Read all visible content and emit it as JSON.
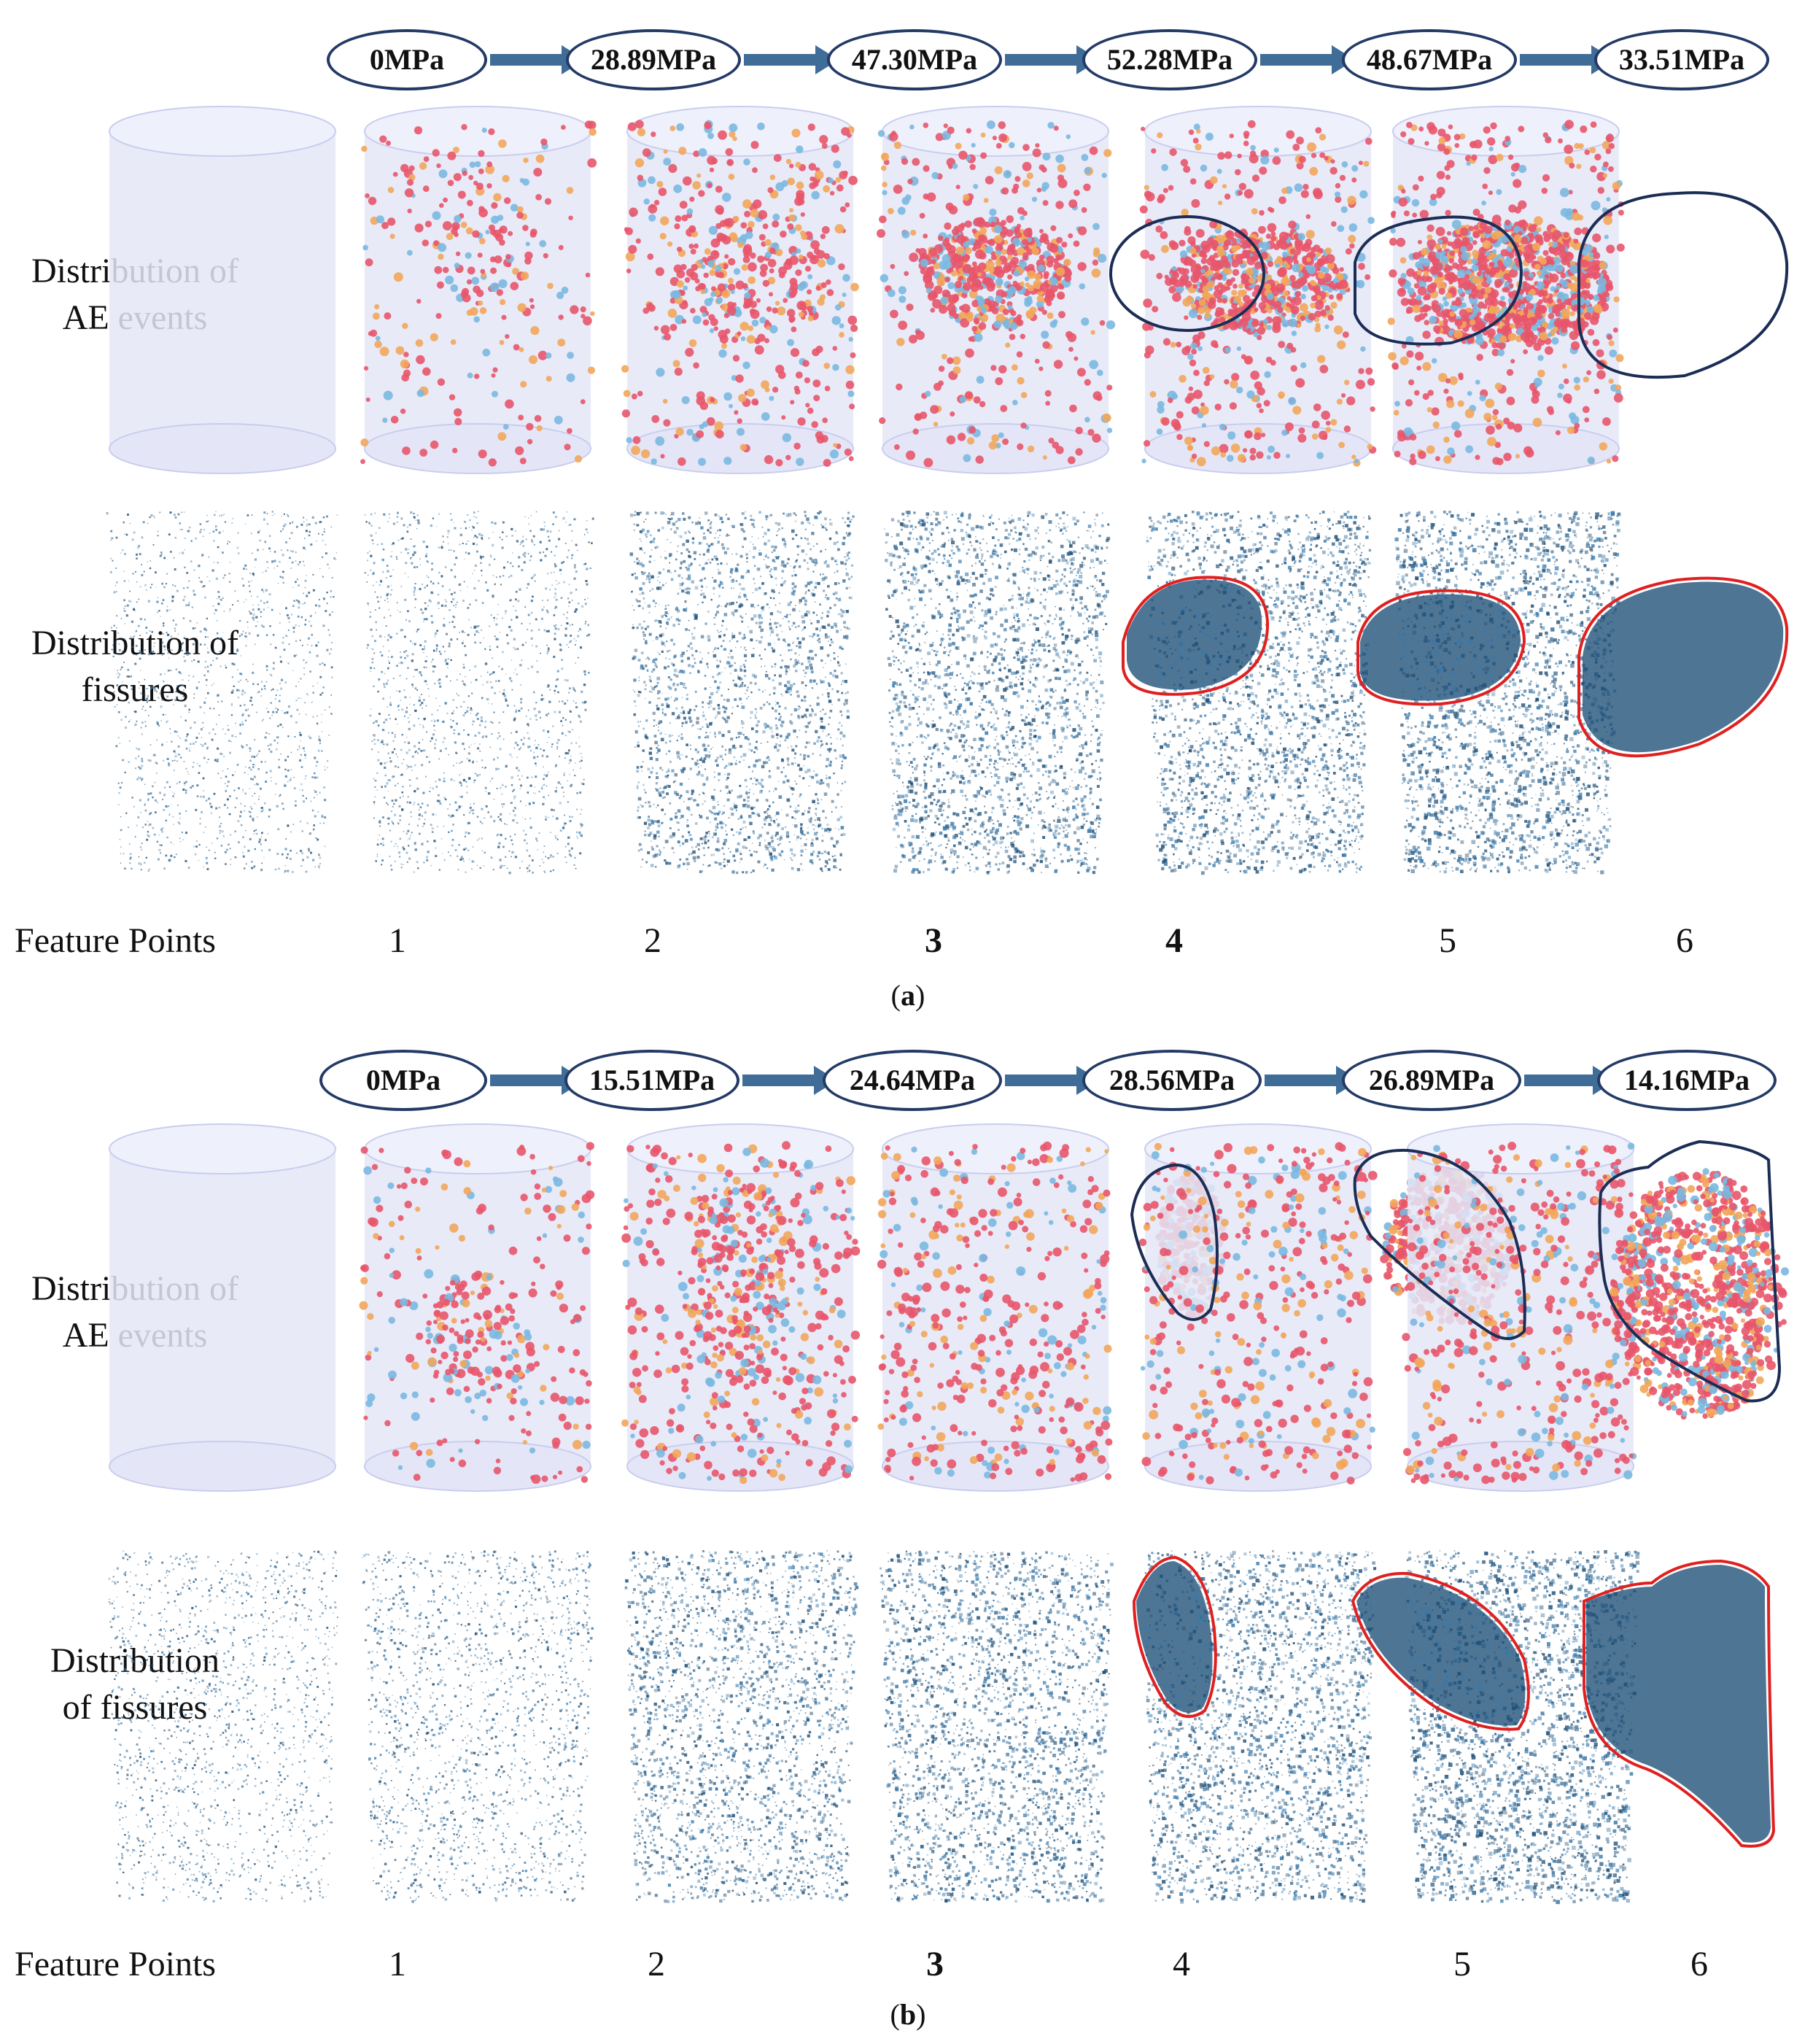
{
  "row_labels": {
    "ae_events": [
      "Distribution of",
      "AE events"
    ],
    "fissures_a": [
      "Distribution of",
      "fissures"
    ],
    "fissures_b": [
      "Distribution",
      "of fissures"
    ],
    "feature_points": "Feature Points"
  },
  "feature_points": [
    "1",
    "2",
    "3",
    "4",
    "5",
    "6"
  ],
  "colors": {
    "cylinder_fill": "#e4e6f7",
    "cylinder_edge": "#c9cdee",
    "ae_red": "#e8556a",
    "ae_orange": "#f2a65a",
    "ae_blue": "#7ab8e0",
    "fissure_dark": "#1d4e76",
    "fissure_mid": "#3a78a8",
    "outline_ae": "#1c2d55",
    "outline_fissure": "#e02020",
    "arrow": "#3f6d97"
  },
  "panel_a": {
    "caption_letter": "a",
    "stresses": [
      "0MPa",
      "28.89MPa",
      "47.30MPa",
      "52.28MPa",
      "48.67MPa",
      "33.51MPa"
    ],
    "bold_feature_points": [
      2,
      3
    ]
  },
  "panel_b": {
    "caption_letter": "b",
    "stresses": [
      "0MPa",
      "15.51MPa",
      "24.64MPa",
      "28.56MPa",
      "26.89MPa",
      "14.16MPa"
    ],
    "bold_feature_points": [
      2
    ]
  }
}
